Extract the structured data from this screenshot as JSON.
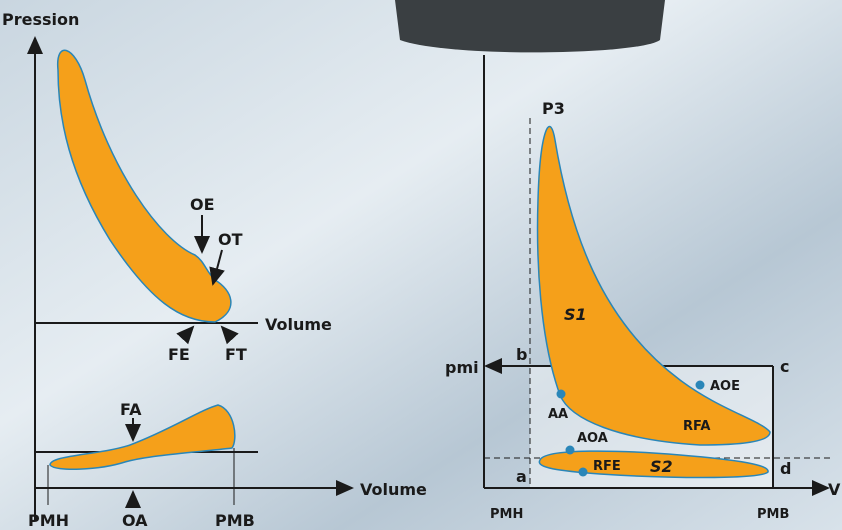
{
  "left_diagram": {
    "y_axis_label": "Pression",
    "upper_x_label": "Volume",
    "lower_x_label": "Volume",
    "upper_labels": [
      "OE",
      "OT",
      "FE",
      "FT"
    ],
    "lower_labels": [
      "FA",
      "OA"
    ],
    "x_ticks": [
      "PMH",
      "PMB"
    ]
  },
  "right_diagram": {
    "peak_label": "P3",
    "pmi_label": "pmi",
    "corners": [
      "b",
      "c",
      "a",
      "d"
    ],
    "areas": [
      "S1",
      "S2"
    ],
    "points": [
      "AA",
      "AOE",
      "RFA",
      "AOA",
      "RFE"
    ],
    "x_ticks": [
      "PMH",
      "PMB"
    ],
    "x_axis_label": "V"
  }
}
